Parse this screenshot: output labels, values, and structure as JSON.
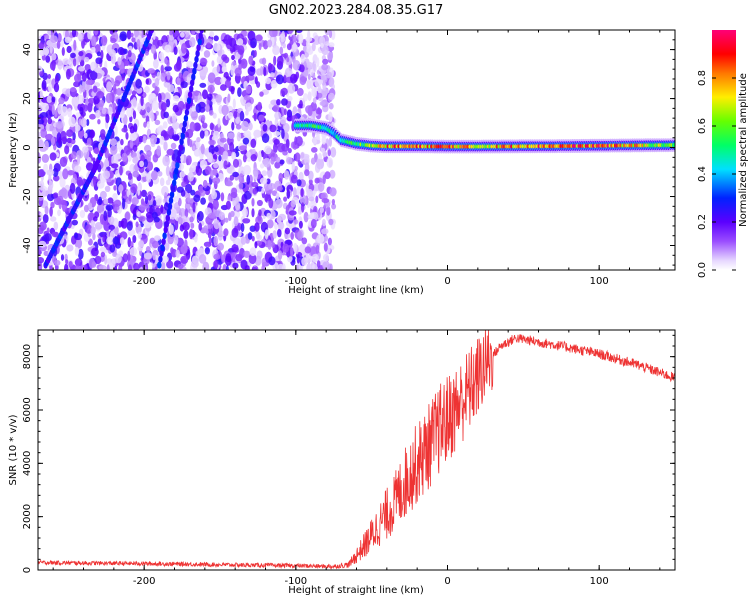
{
  "title": "GN02.2023.284.08.35.G17",
  "chart_data": [
    {
      "type": "heatmap",
      "xlabel": "Height of straight line (km)",
      "ylabel": "Frequency (Hz)",
      "xlim": [
        -270,
        150
      ],
      "ylim": [
        -50,
        48
      ],
      "xticks": [
        -200,
        -100,
        0,
        100
      ],
      "yticks": [
        40,
        20,
        0,
        -20,
        -40
      ],
      "colorbar": {
        "label": "Normalized spectral amplitude",
        "range": [
          0,
          1
        ],
        "ticks": [
          "0.0",
          "0.2",
          "0.4",
          "0.6",
          "0.8"
        ],
        "tick_values": [
          0,
          0.2,
          0.4,
          0.6,
          0.8
        ]
      },
      "noise_region_x": [
        -270,
        -75
      ],
      "tone_track": {
        "x": [
          -100,
          -90,
          -80,
          -75,
          -70,
          -60,
          -50,
          -40,
          -20,
          0,
          20,
          50,
          80,
          110,
          150
        ],
        "freq": [
          9,
          9,
          8,
          6,
          3,
          1.5,
          0.8,
          0.5,
          0.5,
          0.4,
          0.4,
          0.5,
          0.6,
          0.8,
          1.0
        ],
        "amplitude": [
          0.45,
          0.55,
          0.55,
          0.45,
          0.5,
          0.6,
          0.7,
          0.85,
          0.85,
          0.9,
          0.75,
          0.9,
          0.9,
          0.9,
          0.6
        ]
      },
      "diagonal_streaks": [
        {
          "x": [
            -265,
            -232
          ],
          "freq": [
            -48,
            -8
          ]
        },
        {
          "x": [
            -232,
            -195
          ],
          "freq": [
            -8,
            48
          ]
        },
        {
          "x": [
            -190,
            -162
          ],
          "freq": [
            -48,
            48
          ]
        }
      ]
    },
    {
      "type": "line",
      "xlabel": "Height of straight line (km)",
      "ylabel": "SNR (10 * v/v)",
      "xlim": [
        -270,
        150
      ],
      "ylim": [
        0,
        9000
      ],
      "xticks": [
        -200,
        -100,
        0,
        100
      ],
      "yticks": [
        0,
        2000,
        4000,
        6000,
        8000
      ],
      "series": [
        {
          "color": "#ee3333",
          "x": [
            -270,
            -240,
            -200,
            -150,
            -100,
            -75,
            -65,
            -55,
            -45,
            -35,
            -25,
            -15,
            -5,
            5,
            15,
            25,
            35,
            45,
            55,
            75,
            100,
            125,
            150
          ],
          "values": [
            280,
            260,
            240,
            200,
            160,
            130,
            200,
            900,
            1700,
            2500,
            3600,
            4400,
            5300,
            6000,
            6800,
            7700,
            8400,
            8700,
            8600,
            8400,
            8100,
            7700,
            7200
          ]
        }
      ]
    }
  ]
}
